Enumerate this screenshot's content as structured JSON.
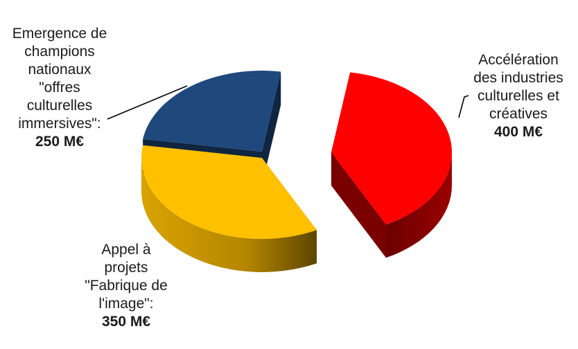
{
  "chart_data": {
    "type": "pie",
    "title": "",
    "slices": [
      {
        "label": "Accélération\ndes industries\nculturelles et\ncréatives",
        "value_label": "400 M€",
        "value": 400,
        "unit": "M€",
        "color": "#ff0000",
        "side_color": "#7a0000"
      },
      {
        "label": "Appel à\nprojets\n\"Fabrique de\nl'image\":",
        "value_label": "350 M€",
        "value": 350,
        "unit": "M€",
        "color": "#ffc000",
        "side_color": "#8a6400"
      },
      {
        "label": "Emergence de\nchampions\nnationaux\n\"offres\nculturelles\nimmersives\":",
        "value_label": "250 M€",
        "value": 250,
        "unit": "M€",
        "color": "#1f497d",
        "side_color": "#0f2540"
      }
    ],
    "style": "3d-exploded"
  }
}
